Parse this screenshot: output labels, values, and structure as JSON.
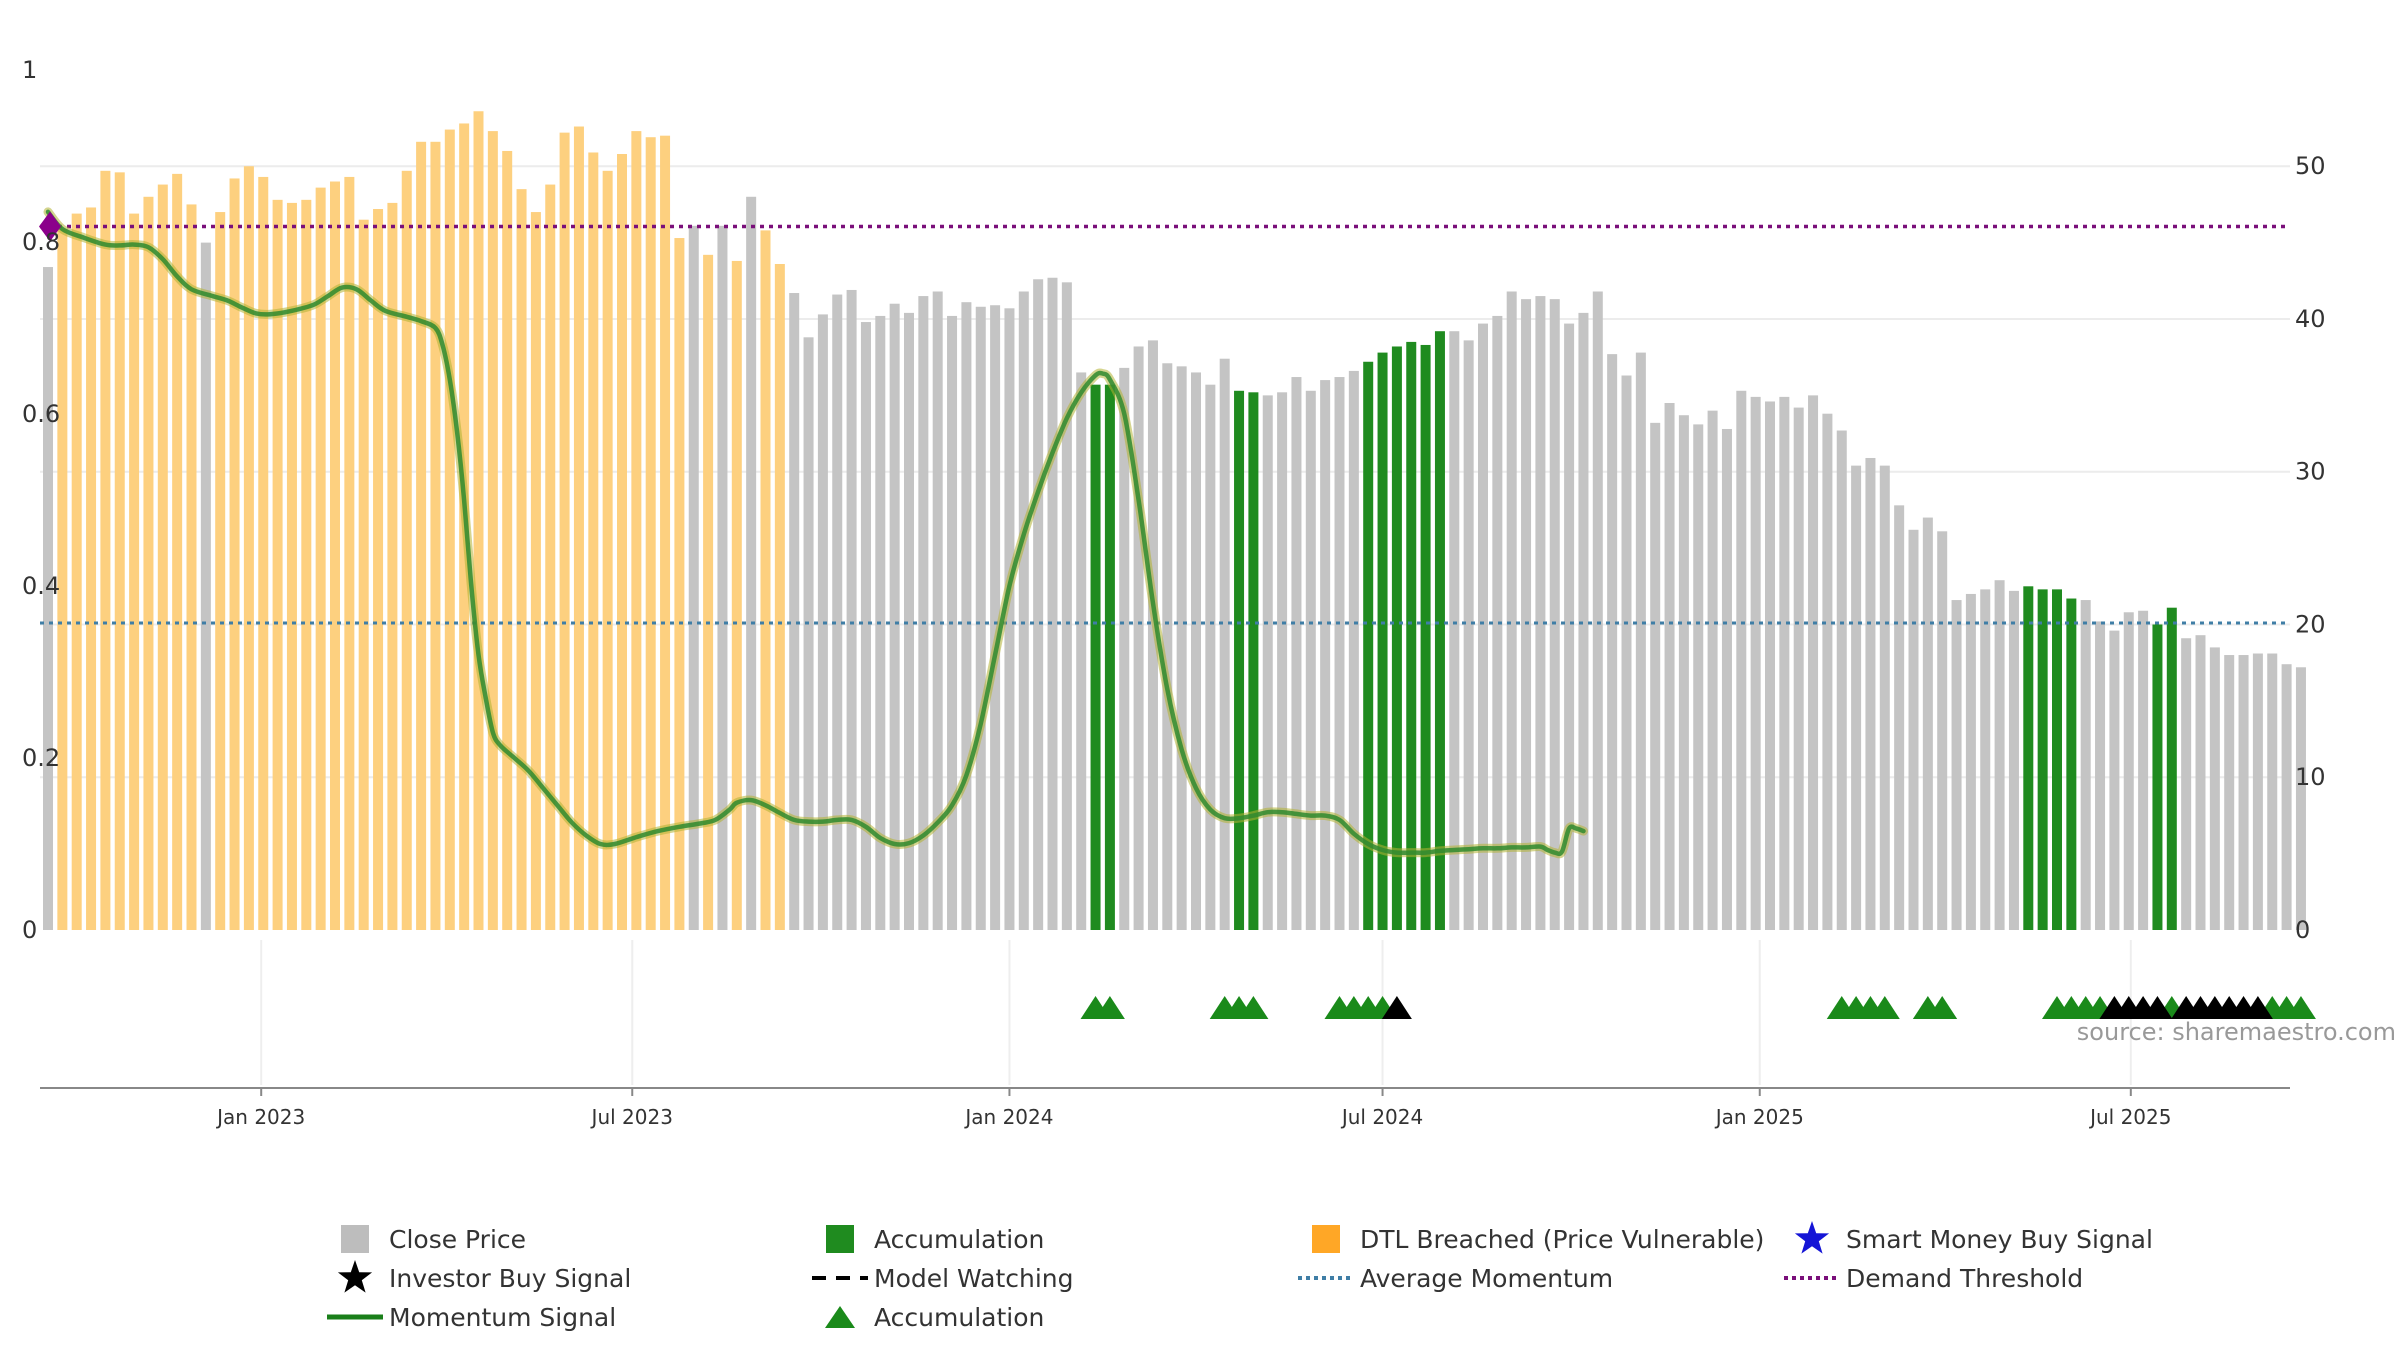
{
  "chart_data": {
    "type": "bar",
    "source_note": "source: sharemaestro.com",
    "x_tick_labels": [
      "Jan 2023",
      "Jul 2023",
      "Jan 2024",
      "Jul 2024",
      "Jan 2025",
      "Jul 2025"
    ],
    "left_axis": {
      "ticks": [
        "0",
        "0.2",
        "0.4",
        "0.6",
        "0.8",
        "1"
      ],
      "range": [
        0,
        1
      ]
    },
    "right_axis": {
      "ticks": [
        "0",
        "10",
        "20",
        "30",
        "40",
        "50"
      ],
      "range": [
        0,
        56.3
      ]
    },
    "weeks": {
      "first": "2022-09-19",
      "step_days": 7
    },
    "close_price": [
      43.4,
      45.9,
      46.9,
      47.3,
      49.7,
      49.6,
      46.9,
      48.0,
      48.8,
      49.5,
      47.5,
      45.0,
      47.0,
      49.2,
      50.0,
      49.3,
      47.8,
      47.6,
      47.8,
      48.6,
      49.0,
      49.3,
      46.5,
      47.2,
      47.6,
      49.7,
      51.6,
      51.6,
      52.4,
      52.8,
      53.6,
      52.3,
      51.0,
      48.5,
      47.0,
      48.8,
      52.2,
      52.6,
      50.9,
      49.7,
      50.8,
      52.3,
      51.9,
      52.0,
      45.3,
      46.1,
      44.2,
      46.1,
      43.8,
      48.0,
      45.8,
      43.6,
      41.7,
      38.8,
      40.3,
      41.6,
      41.9,
      39.8,
      40.2,
      41.0,
      40.4,
      41.5,
      41.8,
      40.2,
      41.1,
      40.8,
      40.9,
      40.7,
      41.8,
      42.6,
      42.7,
      42.4,
      36.5,
      35.7,
      35.7,
      36.8,
      38.2,
      38.6,
      37.1,
      36.9,
      36.5,
      35.7,
      37.4,
      35.3,
      35.2,
      35.0,
      35.2,
      36.2,
      35.3,
      36.0,
      36.2,
      36.6,
      37.2,
      37.8,
      38.2,
      38.5,
      38.3,
      39.2,
      39.2,
      38.6,
      39.7,
      40.2,
      41.8,
      41.3,
      41.5,
      41.3,
      39.7,
      40.4,
      41.8,
      37.7,
      36.3,
      37.8,
      33.2,
      34.5,
      33.7,
      33.1,
      34.0,
      32.8,
      35.3,
      34.9,
      34.6,
      34.9,
      34.2,
      35.0,
      33.8,
      32.7,
      30.4,
      30.9,
      30.4,
      27.8,
      26.2,
      27.0,
      26.1,
      21.6,
      22.0,
      22.3,
      22.9,
      22.2,
      22.5,
      22.3,
      22.3,
      21.7,
      21.6,
      20.2,
      19.6,
      20.8,
      20.9,
      20.0,
      21.1,
      19.1,
      19.3,
      18.5,
      18.0,
      18.0,
      18.1,
      18.1,
      17.4,
      17.2
    ],
    "bar_state": {
      "legend_codes": "d = DTL Breached (Price Vulnerable), a = Accumulation, c = Close Price",
      "weeks": "cddddddddddcdddddddddddddddddddddddddddddddddcdcdcddcccccccccccccccccccccaaccccccccaacccccccaaaaaaccccccccccccccccccccccccccccccccccccccccaaaacccccaacccccccccaaaaaaaaaaaaacccaaa"
    },
    "accumulation_marker_weeks": [
      73,
      74,
      82,
      83,
      84,
      90,
      91,
      92,
      93,
      125,
      126,
      127,
      128,
      131,
      132,
      140,
      141,
      142,
      143,
      148,
      155,
      156,
      157
    ],
    "investor_buy_marker_weeks": [
      94,
      144,
      145,
      146,
      147,
      149,
      150,
      151,
      152,
      153,
      154
    ],
    "momentum_signal": [
      [
        0,
        0.835
      ],
      [
        2,
        0.815
      ],
      [
        5,
        0.805
      ],
      [
        8,
        0.797
      ],
      [
        10,
        0.796
      ],
      [
        12,
        0.797
      ],
      [
        14,
        0.794
      ],
      [
        16,
        0.78
      ],
      [
        18,
        0.76
      ],
      [
        20,
        0.745
      ],
      [
        23,
        0.737
      ],
      [
        25,
        0.732
      ],
      [
        27,
        0.724
      ],
      [
        29,
        0.717
      ],
      [
        31,
        0.716
      ],
      [
        34,
        0.72
      ],
      [
        37,
        0.727
      ],
      [
        39,
        0.737
      ],
      [
        41,
        0.747
      ],
      [
        43,
        0.745
      ],
      [
        45,
        0.732
      ],
      [
        47,
        0.72
      ],
      [
        50,
        0.713
      ],
      [
        52,
        0.708
      ],
      [
        54,
        0.7
      ],
      [
        55,
        0.68
      ],
      [
        56,
        0.64
      ],
      [
        57,
        0.58
      ],
      [
        58,
        0.5
      ],
      [
        59,
        0.4
      ],
      [
        60,
        0.32
      ],
      [
        61,
        0.27
      ],
      [
        62,
        0.23
      ],
      [
        63,
        0.215
      ],
      [
        65,
        0.2
      ],
      [
        67,
        0.185
      ],
      [
        69,
        0.165
      ],
      [
        71,
        0.145
      ],
      [
        73,
        0.125
      ],
      [
        75,
        0.11
      ],
      [
        77,
        0.1
      ],
      [
        79,
        0.1
      ],
      [
        82,
        0.108
      ],
      [
        85,
        0.115
      ],
      [
        88,
        0.12
      ],
      [
        91,
        0.124
      ],
      [
        93,
        0.128
      ],
      [
        95,
        0.14
      ],
      [
        96,
        0.148
      ],
      [
        98,
        0.151
      ],
      [
        100,
        0.145
      ],
      [
        102,
        0.136
      ],
      [
        104,
        0.128
      ],
      [
        106,
        0.126
      ],
      [
        108,
        0.126
      ],
      [
        110,
        0.128
      ],
      [
        112,
        0.128
      ],
      [
        114,
        0.12
      ],
      [
        116,
        0.107
      ],
      [
        118,
        0.1
      ],
      [
        120,
        0.101
      ],
      [
        122,
        0.11
      ],
      [
        124,
        0.125
      ],
      [
        126,
        0.145
      ],
      [
        128,
        0.18
      ],
      [
        130,
        0.24
      ],
      [
        132,
        0.32
      ],
      [
        134,
        0.4
      ],
      [
        136,
        0.46
      ],
      [
        138,
        0.51
      ],
      [
        140,
        0.555
      ],
      [
        142,
        0.595
      ],
      [
        144,
        0.625
      ],
      [
        146,
        0.645
      ],
      [
        147,
        0.647
      ],
      [
        148,
        0.64
      ],
      [
        150,
        0.6
      ],
      [
        152,
        0.5
      ],
      [
        154,
        0.38
      ],
      [
        156,
        0.28
      ],
      [
        158,
        0.21
      ],
      [
        160,
        0.165
      ],
      [
        162,
        0.14
      ],
      [
        164,
        0.13
      ],
      [
        166,
        0.13
      ],
      [
        168,
        0.133
      ],
      [
        170,
        0.137
      ],
      [
        172,
        0.137
      ],
      [
        174,
        0.135
      ],
      [
        176,
        0.133
      ],
      [
        178,
        0.133
      ],
      [
        180,
        0.128
      ],
      [
        182,
        0.112
      ],
      [
        184,
        0.1
      ],
      [
        186,
        0.093
      ],
      [
        188,
        0.09
      ],
      [
        190,
        0.09
      ],
      [
        192,
        0.09
      ],
      [
        194,
        0.092
      ],
      [
        196,
        0.093
      ],
      [
        198,
        0.094
      ],
      [
        200,
        0.095
      ],
      [
        202,
        0.095
      ],
      [
        204,
        0.096
      ],
      [
        206,
        0.096
      ],
      [
        208,
        0.097
      ],
      [
        209,
        0.093
      ],
      [
        210,
        0.09
      ],
      [
        211,
        0.091
      ],
      [
        212,
        0.118
      ],
      [
        213,
        0.118
      ],
      [
        214,
        0.115
      ]
    ],
    "average_momentum": 0.357,
    "demand_threshold": 0.818,
    "demand_threshold_start_marker": 0.818,
    "legend": [
      {
        "label": "Close Price"
      },
      {
        "label": "Accumulation"
      },
      {
        "label": "DTL Breached (Price Vulnerable)"
      },
      {
        "label": "Smart Money Buy Signal"
      },
      {
        "label": "Investor Buy Signal"
      },
      {
        "label": "Model Watching"
      },
      {
        "label": "Average Momentum"
      },
      {
        "label": "Demand Threshold"
      },
      {
        "label": "Momentum Signal"
      },
      {
        "label": "Accumulation"
      }
    ],
    "colors": {
      "close_price": "#c4c4c4",
      "accumulation": "#1f8b1f",
      "dtl_breached": "#fdd07f",
      "legend_dtl": "#ffa726",
      "legend_close": "#bdbdbd",
      "smart_money": "#1515d6",
      "investor_buy": "#000000",
      "model_watching": "#000000",
      "average_momentum": "#3f7ea6",
      "demand_threshold": "#7a0f7a",
      "momentum_signal": "#2f8a2f",
      "momentum_glow": "#b2b233",
      "triangle_green": "#1a8a1a",
      "triangle_black": "#000000",
      "start_marker": "#8b008b"
    }
  }
}
